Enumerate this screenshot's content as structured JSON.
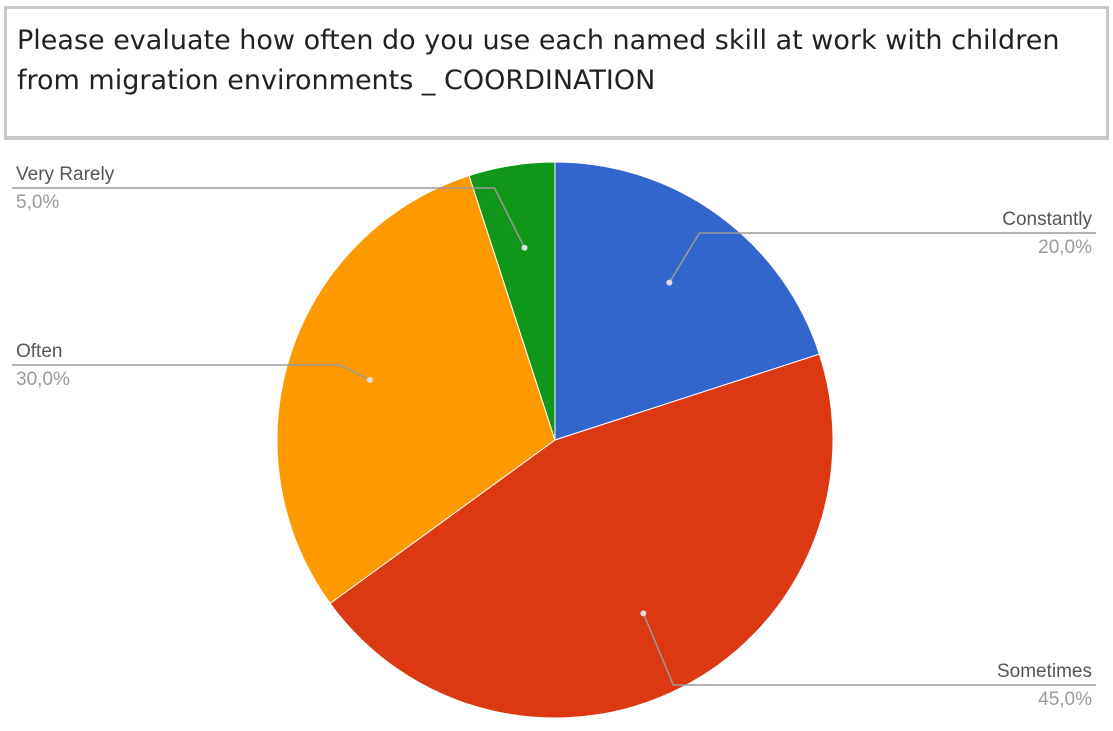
{
  "title": "Please evaluate how often do you use each named skill at work with children from migration environments _ COORDINATION",
  "chart_data": {
    "type": "pie",
    "title": "Please evaluate how often do you use each named skill at work with children from migration environments _ COORDINATION",
    "slices": [
      {
        "label": "Constantly",
        "value": 20,
        "value_label": "20,0%",
        "color": "#3366cc"
      },
      {
        "label": "Sometimes",
        "value": 45,
        "value_label": "45,0%",
        "color": "#dc3912"
      },
      {
        "label": "Often",
        "value": 30,
        "value_label": "30,0%",
        "color": "#ff9900"
      },
      {
        "label": "Very Rarely",
        "value": 5,
        "value_label": "5,0%",
        "color": "#109618"
      }
    ],
    "start": "12 o'clock",
    "direction": "clockwise",
    "legend": "none",
    "labels": "outside with leader lines"
  }
}
